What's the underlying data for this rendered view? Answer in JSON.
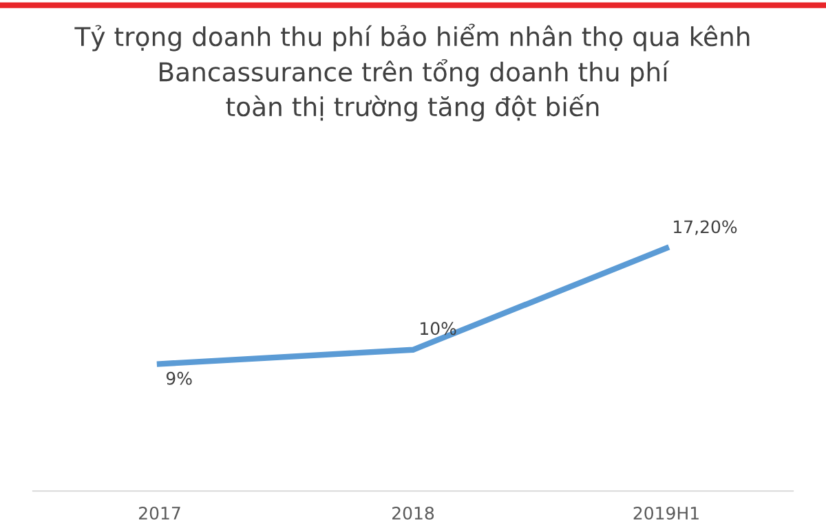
{
  "chart_data": {
    "type": "line",
    "title": "Tỷ trọng doanh thu phí bảo hiểm nhân thọ qua kênh\nBancassurance trên tổng doanh thu phí\ntoàn thị trường tăng đột biến",
    "categories": [
      "2017",
      "2018",
      "2019H1"
    ],
    "series": [
      {
        "color": "#5b9bd5",
        "values": [
          9,
          10,
          17.2
        ],
        "value_labels": [
          "9%",
          "10%",
          "17,20%"
        ]
      }
    ],
    "grid": false,
    "legend": false,
    "marker": "none",
    "line_style": "solid"
  }
}
